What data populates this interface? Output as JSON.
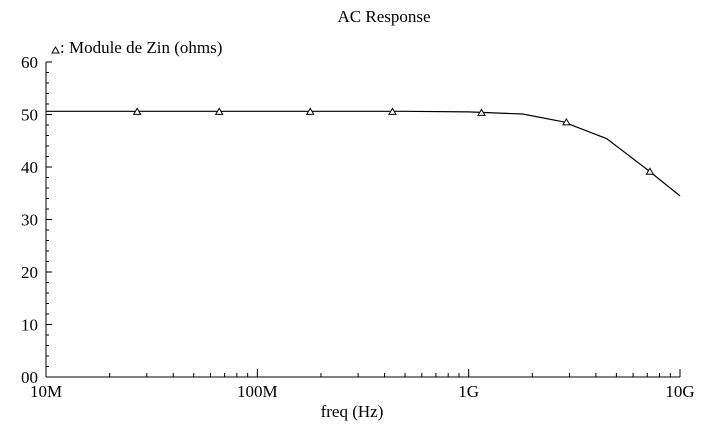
{
  "chart_data": {
    "type": "line",
    "title": "AC Response",
    "xlabel": "freq (Hz)",
    "ylabel": "",
    "x_scale": "log",
    "xlim": [
      10000000,
      10000000000
    ],
    "ylim": [
      0,
      60
    ],
    "x_ticks": [
      {
        "value": 10000000,
        "label": "10M"
      },
      {
        "value": 100000000,
        "label": "100M"
      },
      {
        "value": 1000000000,
        "label": "1G"
      },
      {
        "value": 10000000000,
        "label": "10G"
      }
    ],
    "y_ticks": [
      {
        "value": 0,
        "label": "00"
      },
      {
        "value": 10,
        "label": "10"
      },
      {
        "value": 20,
        "label": "20"
      },
      {
        "value": 30,
        "label": "30"
      },
      {
        "value": 40,
        "label": "40"
      },
      {
        "value": 50,
        "label": "50"
      },
      {
        "value": 60,
        "label": "60"
      }
    ],
    "grid": false,
    "legend": {
      "position": "top-left",
      "marker": "triangle"
    },
    "series": [
      {
        "name": ": Module de Zin (ohms)",
        "marker": "triangle",
        "color": "#000000",
        "x": [
          10000000,
          100000000,
          500000000,
          1000000000,
          1800000000,
          2800000000,
          4500000000,
          7000000000,
          10000000000
        ],
        "y": [
          50.6,
          50.6,
          50.6,
          50.5,
          50.1,
          48.6,
          45.4,
          39.5,
          34.5
        ],
        "markers": [
          {
            "x": 27000000,
            "y": 50.6
          },
          {
            "x": 66000000,
            "y": 50.6
          },
          {
            "x": 178000000,
            "y": 50.6
          },
          {
            "x": 436000000,
            "y": 50.6
          },
          {
            "x": 1150000000,
            "y": 50.4
          },
          {
            "x": 2900000000,
            "y": 48.6
          },
          {
            "x": 7200000000,
            "y": 39.2
          }
        ]
      }
    ]
  }
}
